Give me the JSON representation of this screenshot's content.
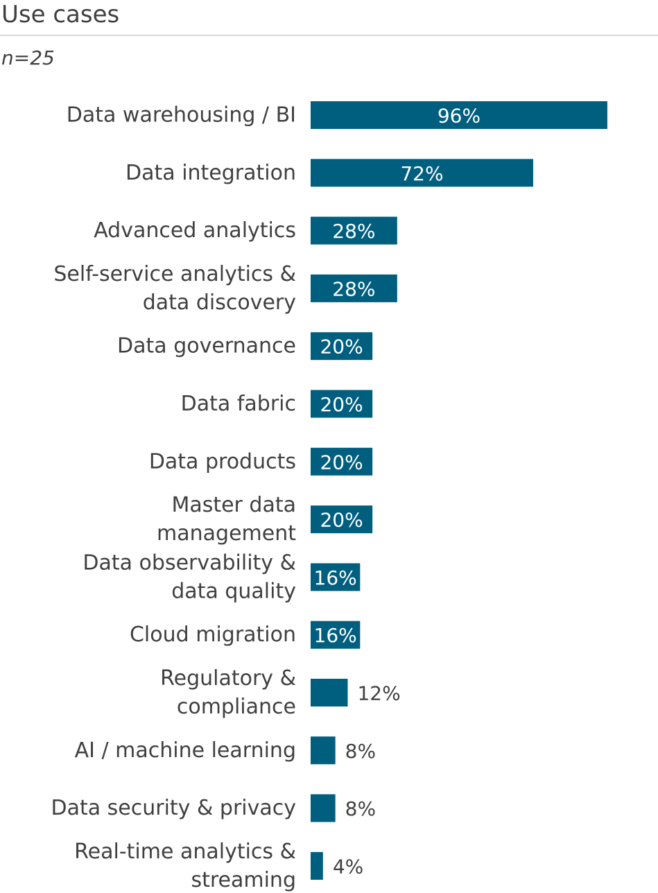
{
  "header": {
    "title": "Use cases",
    "subtitle": "n=25"
  },
  "colors": {
    "bar": "#005f7f",
    "label_inside": "#ffffff",
    "label_outside": "#404040"
  },
  "chart_data": {
    "type": "bar",
    "orientation": "horizontal",
    "title": "Use cases",
    "subtitle": "n=25",
    "xlabel": "",
    "ylabel": "",
    "xlim": [
      0,
      100
    ],
    "grid": false,
    "legend": "none",
    "unit": "%",
    "categories": [
      [
        "Data warehousing / BI"
      ],
      [
        "Data integration"
      ],
      [
        "Advanced analytics"
      ],
      [
        "Self-service analytics &",
        "data discovery"
      ],
      [
        "Data governance"
      ],
      [
        "Data fabric"
      ],
      [
        "Data products"
      ],
      [
        "Master data",
        "management"
      ],
      [
        "Data observability &",
        "data quality"
      ],
      [
        "Cloud migration"
      ],
      [
        "Regulatory &",
        "compliance"
      ],
      [
        "AI / machine learning"
      ],
      [
        "Data security & privacy"
      ],
      [
        "Real-time analytics &",
        "streaming"
      ]
    ],
    "values": [
      96,
      72,
      28,
      28,
      20,
      20,
      20,
      20,
      16,
      16,
      12,
      8,
      8,
      4
    ],
    "value_labels": [
      "96%",
      "72%",
      "28%",
      "28%",
      "20%",
      "20%",
      "20%",
      "20%",
      "16%",
      "16%",
      "12%",
      "8%",
      "8%",
      "4%"
    ]
  }
}
